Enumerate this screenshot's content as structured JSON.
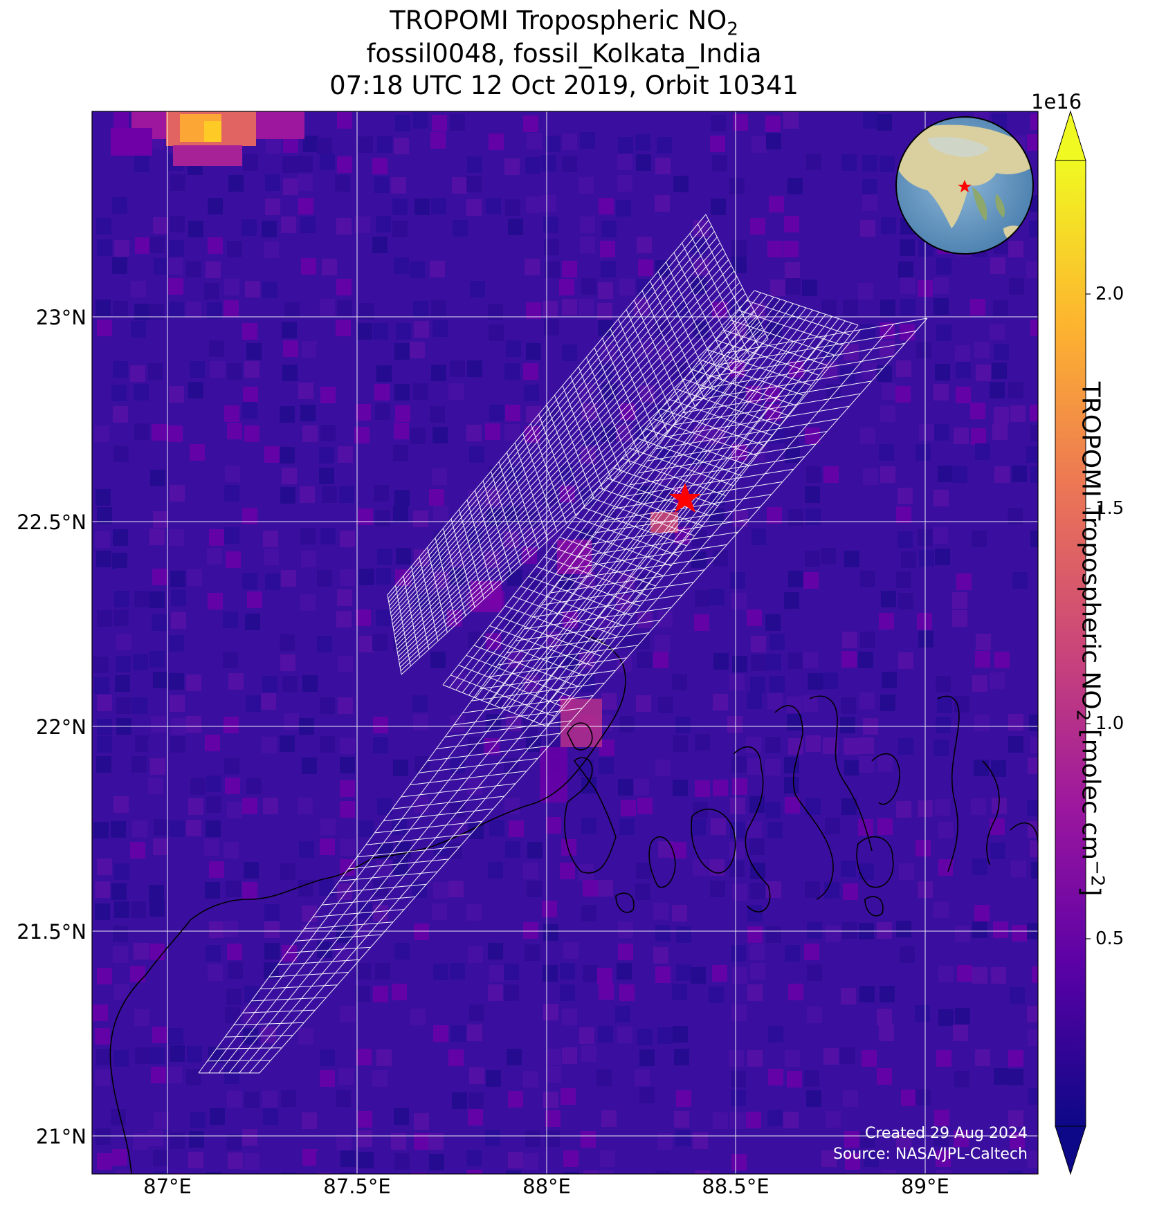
{
  "title": {
    "line1_pre": "TROPOMI Tropospheric NO",
    "line1_sub": "2",
    "line2": "fossil0048, fossil_Kolkata_India",
    "line3": "07:18 UTC 12 Oct 2019, Orbit 10341"
  },
  "axes": {
    "lat_ticks": [
      "23°N",
      "22.5°N",
      "22°N",
      "21.5°N",
      "21°N"
    ],
    "lon_ticks": [
      "87°E",
      "87.5°E",
      "88°E",
      "88.5°E",
      "89°E"
    ],
    "lat_values": [
      23.0,
      22.5,
      22.0,
      21.5,
      21.0
    ],
    "lon_values": [
      87.0,
      87.5,
      88.0,
      88.5,
      89.0
    ],
    "lon_range": [
      86.8,
      89.3
    ],
    "lat_range": [
      20.9,
      23.5
    ]
  },
  "target": {
    "name": "fossil_Kolkata_India",
    "lon": 88.37,
    "lat": 22.57,
    "marker": "red-star"
  },
  "colorbar": {
    "exponent": "1e16",
    "ticks": [
      "2.0",
      "1.5",
      "1.0",
      "0.5"
    ],
    "tick_values": [
      2.0,
      1.5,
      1.0,
      0.5
    ],
    "range": [
      0.0,
      2.6
    ],
    "label_pre": "TROPOMI Tropospheric NO",
    "label_sub": "2",
    "label_mid": " [molec cm",
    "label_sup": "−2",
    "label_post": "]",
    "colormap": "plasma",
    "colors": [
      "#0d0887",
      "#5c01a6",
      "#9c179e",
      "#cc4778",
      "#ed7953",
      "#fdb42f",
      "#f0f921"
    ]
  },
  "credits": {
    "created": "Created 29 Aug 2024",
    "source": "Source: NASA/JPL-Caltech"
  },
  "colors": {
    "background_field": "#3a0fa0",
    "grid": "#ffffff",
    "target_marker": "#ff0000",
    "coastline": "#000000",
    "swath_grid": "#ffffff"
  }
}
